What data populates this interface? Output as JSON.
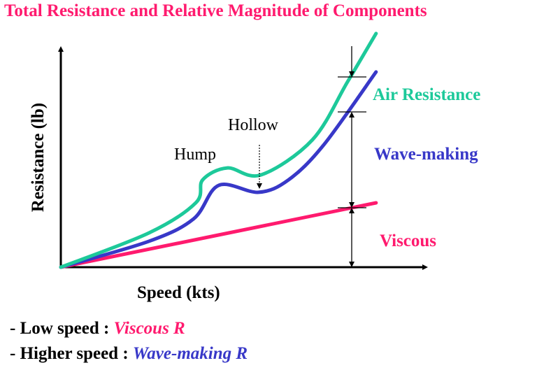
{
  "title": "Total Resistance and Relative Magnitude of Components",
  "chart_data": {
    "type": "line",
    "title": "Total Resistance and Relative Magnitude of Components",
    "xlabel": "Speed (kts)",
    "ylabel": "Resistance (lb)",
    "xlim": [
      0,
      100
    ],
    "ylim": [
      0,
      100
    ],
    "grid": false,
    "series": [
      {
        "name": "Air Resistance",
        "color": "#1dc99a",
        "x": [
          0,
          24.1,
          36.9,
          38.8,
          45.5,
          54.7,
          68.8,
          78.4,
          86.2
        ],
        "y": [
          0,
          15.6,
          29.3,
          39.8,
          45.2,
          42,
          58,
          84.4,
          106.4
        ]
      },
      {
        "name": "Wave-making",
        "color": "#3838c8",
        "x": [
          0,
          24.1,
          36.3,
          43.2,
          54.1,
          62.3,
          71.9,
          86.2
        ],
        "y": [
          0,
          11.8,
          22,
          37.3,
          34.1,
          39.8,
          55.7,
          88.9
        ]
      },
      {
        "name": "Viscous",
        "color": "#ff1a6e",
        "x": [
          0,
          86.2
        ],
        "y": [
          0,
          29.3
        ]
      }
    ],
    "annotations": {
      "hump": "Hump",
      "hollow": "Hollow"
    }
  },
  "bullets": [
    {
      "prefix": "- Low speed : ",
      "value": "Viscous R",
      "color": "#ff1a6e"
    },
    {
      "prefix": "- Higher speed : ",
      "value": "Wave-making R",
      "color": "#3838c8"
    }
  ]
}
